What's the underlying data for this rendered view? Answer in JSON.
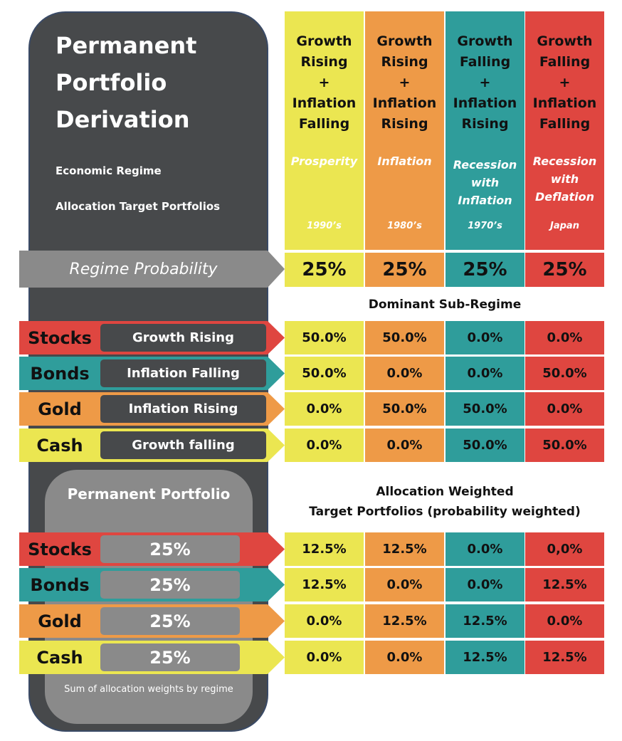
{
  "colors": {
    "yellow": "#ebe651",
    "orange": "#ee9a47",
    "teal": "#2f9d9b",
    "red": "#df4640",
    "dark": "#47494b",
    "grey": "#8a8a8a"
  },
  "title": "Permanent Portfolio Derivation",
  "labels": {
    "economic_regime": "Economic Regime",
    "allocation_targets": "Allocation Target Portfolios",
    "regime_probability": "Regime Probability",
    "dominant_sub_regime": "Dominant Sub-Regime",
    "allocation_weighted_1": "Allocation Weighted",
    "allocation_weighted_2": "Target Portfolios (probability weighted)",
    "permanent_portfolio": "Permanent Portfolio",
    "sum_note": "Sum of allocation weights by regime"
  },
  "regimes": [
    {
      "heading": [
        "Growth",
        "Rising",
        "+",
        "Inflation",
        "Falling"
      ],
      "name": "Prosperity",
      "era": "1990’s",
      "probability": "25%",
      "color": "yellow"
    },
    {
      "heading": [
        "Growth",
        "Rising",
        "+",
        "Inflation",
        "Rising"
      ],
      "name": "Inflation",
      "era": "1980’s",
      "probability": "25%",
      "color": "orange"
    },
    {
      "heading": [
        "Growth",
        "Falling",
        "+",
        "Inflation",
        "Rising"
      ],
      "name": "Recession with Inflation",
      "era": "1970’s",
      "probability": "25%",
      "color": "teal"
    },
    {
      "heading": [
        "Growth",
        "Falling",
        "+",
        "Inflation",
        "Falling"
      ],
      "name": "Recession with Deflation",
      "era": "Japan",
      "probability": "25%",
      "color": "red"
    }
  ],
  "assets": [
    {
      "name": "Stocks",
      "sub_regime": "Growth Rising",
      "color": "red",
      "allocations": [
        "50.0%",
        "50.0%",
        "0.0%",
        "0.0%"
      ],
      "weight": "25%",
      "weighted": [
        "12.5%",
        "12.5%",
        "0.0%",
        "0,0%"
      ]
    },
    {
      "name": "Bonds",
      "sub_regime": "Inflation Falling",
      "color": "teal",
      "allocations": [
        "50.0%",
        "0.0%",
        "0.0%",
        "50.0%"
      ],
      "weight": "25%",
      "weighted": [
        "12.5%",
        "0.0%",
        "0.0%",
        "12.5%"
      ]
    },
    {
      "name": "Gold",
      "sub_regime": "Inflation Rising",
      "color": "orange",
      "allocations": [
        "0.0%",
        "50.0%",
        "50.0%",
        "0.0%"
      ],
      "weight": "25%",
      "weighted": [
        "0.0%",
        "12.5%",
        "12.5%",
        "0.0%"
      ]
    },
    {
      "name": "Cash",
      "sub_regime": "Growth falling",
      "color": "yellow",
      "allocations": [
        "0.0%",
        "0.0%",
        "50.0%",
        "50.0%"
      ],
      "weight": "25%",
      "weighted": [
        "0.0%",
        "0.0%",
        "12.5%",
        "12.5%"
      ]
    }
  ]
}
